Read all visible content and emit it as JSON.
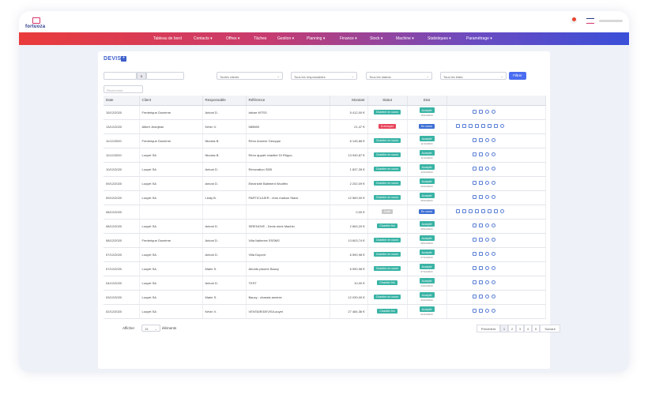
{
  "brand": {
    "name": "fortuoza"
  },
  "nav": [
    "Tableau de bord",
    "Contacts ▾",
    "Offres ▾",
    "Tâches",
    "Gestion ▾",
    "Planning ▾",
    "Finance ▾",
    "Stock ▾",
    "Machine ▾",
    "Statistiques ▾",
    "Paramétrage ▾"
  ],
  "page": {
    "title": "DEVIS",
    "add_label": "+"
  },
  "filters": {
    "amount_symbol": "$",
    "clients": "Toutes clients",
    "responsables": "Tous les responsables",
    "statuts": "Tous les statuts",
    "etats": "Tous les états",
    "filter_button": "Filtrer",
    "search_placeholder": "Rechercher"
  },
  "table": {
    "headers": [
      "Date",
      "Client",
      "Responsable",
      "Référence",
      "Montant",
      "Statut",
      "Etat",
      ""
    ],
    "rows": [
      {
        "date": "15/12/2020",
        "client": "Frederique Duneirne",
        "resp": "Antoni D.",
        "ref": "Isiture MTSS",
        "montant": "5 412,00 €",
        "statut": "Chantier en cours",
        "statut_color": "#39b3a5",
        "etat": "Accepté",
        "etat_color": "#39b3a5",
        "etat_date": "15/12/2020"
      },
      {
        "date": "13/12/2020",
        "client": "Albert Jeanjean",
        "resp": "Kévin V.",
        "ref": "585985",
        "montant": "21,47 €",
        "statut": "À envoyer",
        "statut_color": "#e8445a",
        "etat": "En cours",
        "etat_color": "#3d6fd4",
        "etat_date": ""
      },
      {
        "date": "11/12/2020",
        "client": "Frederique Duneirne",
        "resp": "Nicolas B.",
        "ref": "Réno Annexe Geruppe",
        "montant": "6 145,86 €",
        "statut": "Chantier en cours",
        "statut_color": "#39b3a5",
        "etat": "Accepté",
        "etat_color": "#39b3a5",
        "etat_date": "11/12/2020"
      },
      {
        "date": "11/12/2020",
        "client": "Louyet SA",
        "resp": "Nicolas B.",
        "ref": "Réno appart chantier Di Filippo",
        "montant": "13 940,87 €",
        "statut": "Chantier en cours",
        "statut_color": "#39b3a5",
        "etat": "Accepté",
        "etat_color": "#39b3a5",
        "etat_date": "11/12/2020"
      },
      {
        "date": "10/12/2020",
        "client": "Louyet SA",
        "resp": "Antoni D.",
        "ref": "Rénovation SDB",
        "montant": "1 837,35 €",
        "statut": "Chantier en cours",
        "statut_color": "#39b3a5",
        "etat": "Accepté",
        "etat_color": "#39b3a5",
        "etat_date": "10/12/2020"
      },
      {
        "date": "09/12/2020",
        "client": "Louyet SA",
        "resp": "Antoni D.",
        "ref": "Electricité Batiment Woolfex",
        "montant": "2 202,09 €",
        "statut": "Chantier en cours",
        "statut_color": "#39b3a5",
        "etat": "Accepté",
        "etat_color": "#39b3a5",
        "etat_date": "09/12/2020"
      },
      {
        "date": "09/12/2020",
        "client": "Louyet SA",
        "resp": "Lindy B.",
        "ref": "PARTICULIER - réno maison Stave",
        "montant": "12 569,00 €",
        "statut": "Chantier en cours",
        "statut_color": "#39b3a5",
        "etat": "Accepté",
        "etat_color": "#39b3a5",
        "etat_date": "09/12/2020"
      },
      {
        "date": "08/12/2020",
        "client": "",
        "resp": "",
        "ref": "",
        "montant": "0,00 €",
        "statut": "Draft",
        "statut_color": "#c8c8c8",
        "etat": "En cours",
        "etat_color": "#3d6fd4",
        "etat_date": ""
      },
      {
        "date": "08/12/2020",
        "client": "Louyet SA",
        "resp": "Antoni D.",
        "ref": "SIRENOVE - Devis mme Machin",
        "montant": "2 663,20 €",
        "statut": "Chantier fini",
        "statut_color": "#39b3a5",
        "etat": "Accepté",
        "etat_color": "#39b3a5",
        "etat_date": "08/12/2020"
      },
      {
        "date": "08/12/2020",
        "client": "Frederique Duneirne",
        "resp": "Antoni D.",
        "ref": "Villa Nalinnes SSSMS",
        "montant": "13 603,74 €",
        "statut": "Chantier en cours",
        "statut_color": "#39b3a5",
        "etat": "Accepté",
        "etat_color": "#39b3a5",
        "etat_date": "08/12/2020"
      },
      {
        "date": "07/12/2020",
        "client": "Louyet SA",
        "resp": "Antoni D.",
        "ref": "Villa Dupont",
        "montant": "6 590,98 €",
        "statut": "Chantier en cours",
        "statut_color": "#39b3a5",
        "etat": "Accepté",
        "etat_color": "#39b3a5",
        "etat_date": "07/12/2020"
      },
      {
        "date": "07/12/2020",
        "client": "Louyet SA",
        "resp": "Marie S.",
        "ref": "Abords piscine Baucy",
        "montant": "6 590,98 €",
        "statut": "Chantier en cours",
        "statut_color": "#39b3a5",
        "etat": "Accepté",
        "etat_color": "#39b3a5",
        "etat_date": "07/12/2020"
      },
      {
        "date": "04/12/2020",
        "client": "Louyet SA",
        "resp": "Antoni D.",
        "ref": "TEST",
        "montant": "10,00 €",
        "statut": "Chantier fini",
        "statut_color": "#39b3a5",
        "etat": "Accepté",
        "etat_color": "#39b3a5",
        "etat_date": "04/12/2020"
      },
      {
        "date": "03/12/2020",
        "client": "Louyet SA",
        "resp": "Marie S.",
        "ref": "Baucy - chassis annexe",
        "montant": "12 039,00 €",
        "statut": "Chantier en cours",
        "statut_color": "#39b3a5",
        "etat": "Accepté",
        "etat_color": "#39b3a5",
        "etat_date": "03/12/2020"
      },
      {
        "date": "02/12/2020",
        "client": "Louyet SA",
        "resp": "Kévin V.",
        "ref": "VENTAIR/DEVIS/Louyet",
        "montant": "27 484,36 €",
        "statut": "Chantier fini",
        "statut_color": "#39b3a5",
        "etat": "Accepté",
        "etat_color": "#39b3a5",
        "etat_date": "02/12/2020"
      }
    ]
  },
  "footer": {
    "show_label": "Afficher",
    "show_value": "15",
    "elements_label": "éléments",
    "prev": "Précédent",
    "pages": [
      "1",
      "2",
      "3",
      "4",
      "5"
    ],
    "next": "Suivant"
  }
}
